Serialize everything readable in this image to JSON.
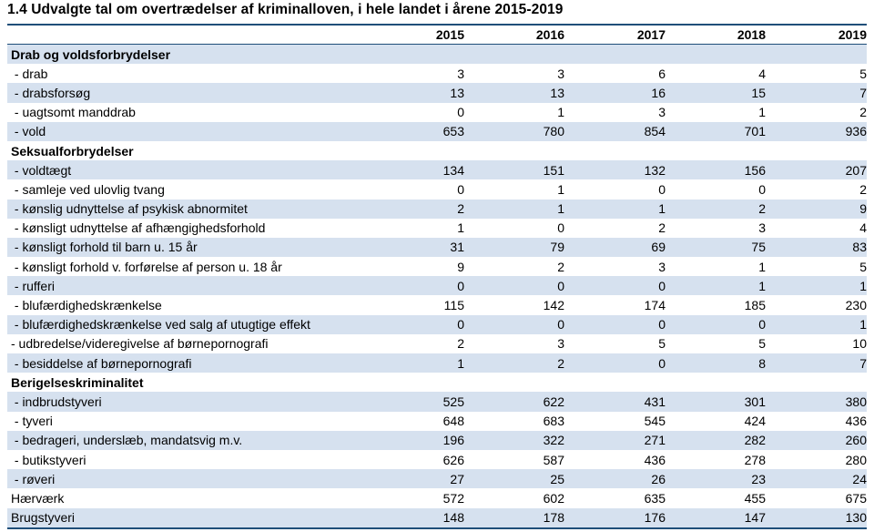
{
  "title": "1.4 Udvalgte tal om overtrædelser af kriminalloven, i hele landet i årene 2015-2019",
  "columns": [
    "2015",
    "2016",
    "2017",
    "2018",
    "2019"
  ],
  "colors": {
    "accent_rule": "#1f4e79",
    "row_shade": "#d6e1ef"
  },
  "rows": [
    {
      "type": "section",
      "label": "Drab og voldsforbrydelser",
      "values": [],
      "shaded": true
    },
    {
      "type": "data",
      "label": " - drab",
      "values": [
        "3",
        "3",
        "6",
        "4",
        "5"
      ],
      "shaded": false
    },
    {
      "type": "data",
      "label": " - drabsforsøg",
      "values": [
        "13",
        "13",
        "16",
        "15",
        "7"
      ],
      "shaded": true
    },
    {
      "type": "data",
      "label": " - uagtsomt manddrab",
      "values": [
        "0",
        "1",
        "3",
        "1",
        "2"
      ],
      "shaded": false
    },
    {
      "type": "data",
      "label": " - vold",
      "values": [
        "653",
        "780",
        "854",
        "701",
        "936"
      ],
      "shaded": true
    },
    {
      "type": "section",
      "label": "Seksualforbrydelser",
      "values": [],
      "shaded": false
    },
    {
      "type": "data",
      "label": " - voldtægt",
      "values": [
        "134",
        "151",
        "132",
        "156",
        "207"
      ],
      "shaded": true
    },
    {
      "type": "data",
      "label": " - samleje ved ulovlig tvang",
      "values": [
        "0",
        "1",
        "0",
        "0",
        "2"
      ],
      "shaded": false
    },
    {
      "type": "data",
      "label": " - kønslig udnyttelse af psykisk abnormitet",
      "values": [
        "2",
        "1",
        "1",
        "2",
        "9"
      ],
      "shaded": true
    },
    {
      "type": "data",
      "label": " - kønsligt udnyttelse af afhængighedsforhold",
      "values": [
        "1",
        "0",
        "2",
        "3",
        "4"
      ],
      "shaded": false
    },
    {
      "type": "data",
      "label": " - kønsligt forhold til barn u. 15 år",
      "values": [
        "31",
        "79",
        "69",
        "75",
        "83"
      ],
      "shaded": true
    },
    {
      "type": "data",
      "label": " - kønsligt forhold v. forførelse af person u. 18 år",
      "values": [
        "9",
        "2",
        "3",
        "1",
        "5"
      ],
      "shaded": false
    },
    {
      "type": "data",
      "label": " - rufferi",
      "values": [
        "0",
        "0",
        "0",
        "1",
        "1"
      ],
      "shaded": true
    },
    {
      "type": "data",
      "label": " - blufærdighedskrænkelse",
      "values": [
        "115",
        "142",
        "174",
        "185",
        "230"
      ],
      "shaded": false
    },
    {
      "type": "data",
      "label": " - blufærdighedskrænkelse ved salg af utugtige effekt",
      "values": [
        "0",
        "0",
        "0",
        "0",
        "1"
      ],
      "shaded": true
    },
    {
      "type": "data",
      "label": "- udbredelse/videregivelse af børnepornografi",
      "values": [
        "2",
        "3",
        "5",
        "5",
        "10"
      ],
      "shaded": false
    },
    {
      "type": "data",
      "label": " - besiddelse af børnepornografi",
      "values": [
        "1",
        "2",
        "0",
        "8",
        "7"
      ],
      "shaded": true
    },
    {
      "type": "section",
      "label": "Berigelseskriminalitet",
      "values": [],
      "shaded": false
    },
    {
      "type": "data",
      "label": " - indbrudstyveri",
      "values": [
        "525",
        "622",
        "431",
        "301",
        "380"
      ],
      "shaded": true
    },
    {
      "type": "data",
      "label": " - tyveri",
      "values": [
        "648",
        "683",
        "545",
        "424",
        "436"
      ],
      "shaded": false
    },
    {
      "type": "data",
      "label": " - bedrageri, underslæb, mandatsvig m.v.",
      "values": [
        "196",
        "322",
        "271",
        "282",
        "260"
      ],
      "shaded": true
    },
    {
      "type": "data",
      "label": " - butikstyveri",
      "values": [
        "626",
        "587",
        "436",
        "278",
        "280"
      ],
      "shaded": false
    },
    {
      "type": "data",
      "label": " - røveri",
      "values": [
        "27",
        "25",
        "26",
        "23",
        "24"
      ],
      "shaded": true
    },
    {
      "type": "data",
      "label": "Hærværk",
      "values": [
        "572",
        "602",
        "635",
        "455",
        "675"
      ],
      "shaded": false
    },
    {
      "type": "data",
      "label": "Brugstyveri",
      "values": [
        "148",
        "178",
        "176",
        "147",
        "130"
      ],
      "shaded": true
    }
  ]
}
